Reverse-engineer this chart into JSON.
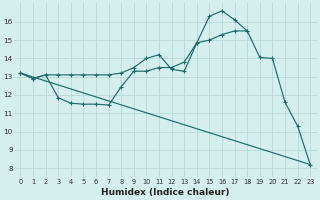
{
  "xlabel": "Humidex (Indice chaleur)",
  "background_color": "#d5eeee",
  "grid_color": "#b8d8d8",
  "line_color": "#1a6e6a",
  "xlim": [
    -0.5,
    23.5
  ],
  "ylim": [
    7.5,
    17.0
  ],
  "xticks": [
    0,
    1,
    2,
    3,
    4,
    5,
    6,
    7,
    8,
    9,
    10,
    11,
    12,
    13,
    14,
    15,
    16,
    17,
    18,
    19,
    20,
    21,
    22,
    23
  ],
  "yticks": [
    8,
    9,
    10,
    11,
    12,
    13,
    14,
    15,
    16
  ],
  "curve1_x": [
    0,
    1,
    2,
    3,
    4,
    5,
    6,
    7,
    8,
    9,
    10,
    11,
    12,
    13,
    14,
    15,
    16,
    17,
    18
  ],
  "curve1_y": [
    13.2,
    12.9,
    13.1,
    13.1,
    13.1,
    13.1,
    13.1,
    13.1,
    13.2,
    13.5,
    14.0,
    14.2,
    13.4,
    13.3,
    14.85,
    15.0,
    15.3,
    15.5,
    15.5
  ],
  "curve2_x": [
    0,
    1,
    2,
    3,
    4,
    5,
    6,
    7,
    8,
    9,
    10,
    11,
    12,
    13,
    14,
    15,
    16,
    17,
    18,
    19,
    20,
    21,
    22,
    23
  ],
  "curve2_y": [
    13.2,
    12.9,
    13.1,
    11.85,
    11.55,
    11.5,
    11.5,
    11.45,
    12.45,
    13.3,
    13.3,
    13.5,
    13.5,
    13.8,
    14.85,
    16.3,
    16.6,
    16.1,
    15.5,
    14.05,
    14.0,
    11.6,
    10.3,
    8.2
  ],
  "curve3_x": [
    0,
    23
  ],
  "curve3_y": [
    13.2,
    8.2
  ]
}
